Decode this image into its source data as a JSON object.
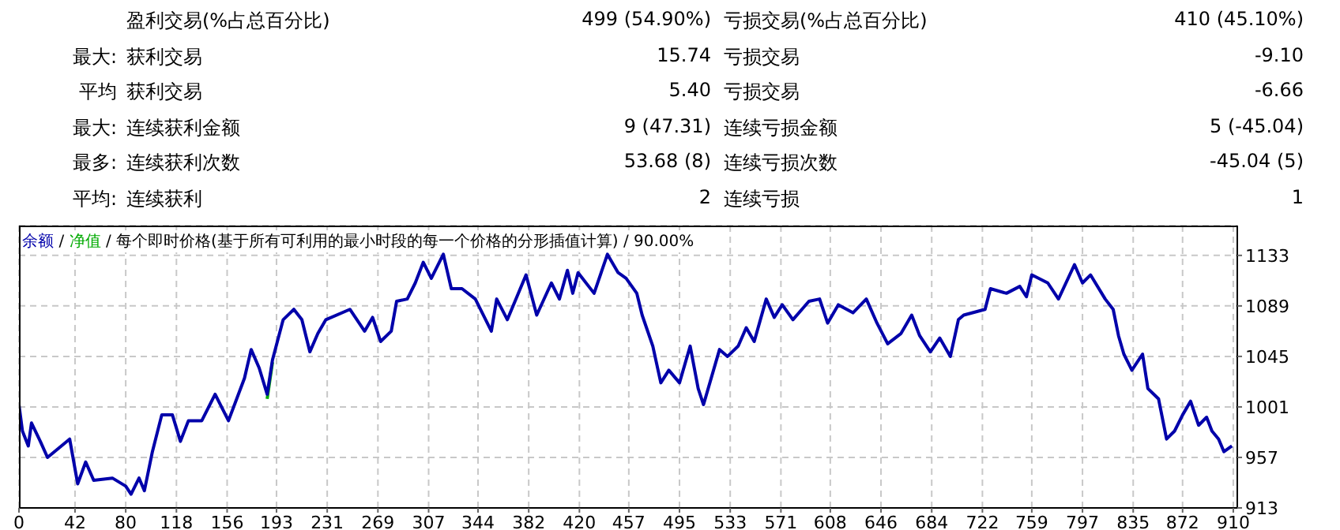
{
  "chart_data": {
    "type": "line",
    "annotations": [
      "盈利交易(%占总百分比)",
      "499 (54.90%)",
      "亏损交易(%占总百分比)",
      "410 (45.10%)",
      "最大:",
      "获利交易",
      "15.74",
      "亏损交易",
      "-9.10",
      "平均",
      "获利交易",
      "5.40",
      "亏损交易",
      "-6.66",
      "最大:",
      "连续获利金额",
      "9 (47.31)",
      "连续亏损金额",
      "5 (-45.04)",
      "最多:",
      "连续获利次数",
      "53.68 (8)",
      "连续亏损次数",
      "-45.04 (5)",
      "平均:",
      "连续获利",
      "2",
      "连续亏损",
      "1",
      "/",
      "/ 每个即时价格(基于所有可利用的最小时段的每一个价格的分形插值计算)",
      "/ 90.00%"
    ],
    "x": [
      0,
      2.6,
      7,
      9.4,
      16,
      21.4,
      38,
      44,
      50,
      56,
      70,
      80,
      84,
      90,
      94,
      100,
      107,
      115,
      121,
      127,
      137,
      147,
      157,
      169,
      174,
      180,
      186,
      190,
      198,
      206,
      212,
      218,
      224,
      230,
      248,
      259,
      265,
      271,
      279,
      283,
      291,
      297,
      303,
      309,
      318,
      324,
      332,
      342,
      354,
      358,
      366,
      380,
      388,
      399,
      405,
      411,
      415,
      419,
      431,
      441,
      449,
      455,
      463,
      467,
      475,
      481,
      487,
      495,
      503,
      509,
      513,
      525,
      531,
      539,
      545,
      551,
      560,
      566,
      572,
      580,
      592,
      600,
      606,
      614,
      625,
      635,
      643,
      651,
      661,
      669,
      675,
      683,
      690,
      698,
      704,
      708,
      724,
      728,
      740,
      750,
      755,
      759,
      771,
      779,
      791,
      797,
      803,
      814,
      820,
      824,
      828,
      834,
      842,
      846,
      854,
      860,
      866,
      872,
      878,
      884,
      890,
      894,
      899,
      903,
      909
    ],
    "series": [
      {
        "name": "余额",
        "color": "#0000aa",
        "values": [
          1003,
          980,
          967,
          987,
          971,
          957,
          973,
          934,
          953,
          937,
          939,
          932,
          925,
          939,
          928,
          962,
          994,
          994,
          971,
          989,
          989,
          1012,
          989,
          1026,
          1051,
          1035,
          1012,
          1042,
          1077,
          1086,
          1077,
          1049,
          1065,
          1077,
          1086,
          1067,
          1079,
          1058,
          1067,
          1093,
          1095,
          1109,
          1127,
          1113,
          1134,
          1104,
          1104,
          1095,
          1067,
          1095,
          1077,
          1116,
          1081,
          1109,
          1095,
          1120,
          1100,
          1118,
          1100,
          1134,
          1118,
          1113,
          1100,
          1081,
          1054,
          1022,
          1033,
          1022,
          1054,
          1017,
          1003,
          1051,
          1045,
          1054,
          1070,
          1058,
          1095,
          1079,
          1090,
          1077,
          1093,
          1095,
          1074,
          1090,
          1083,
          1095,
          1074,
          1056,
          1065,
          1081,
          1063,
          1049,
          1061,
          1045,
          1077,
          1081,
          1086,
          1104,
          1100,
          1106,
          1097,
          1116,
          1109,
          1095,
          1125,
          1109,
          1116,
          1095,
          1086,
          1063,
          1047,
          1033,
          1047,
          1017,
          1008,
          973,
          980,
          994,
          1006,
          985,
          992,
          980,
          973,
          962,
          967
        ]
      },
      {
        "name": "净值",
        "color": "#00aa00",
        "values": [
          null,
          null,
          null,
          null,
          null,
          null,
          null,
          null,
          null,
          null,
          null,
          null,
          null,
          null,
          null,
          null,
          null,
          null,
          null,
          null,
          null,
          null,
          null,
          null,
          null,
          null,
          1008,
          1040,
          null,
          null,
          null,
          null,
          null,
          null,
          null,
          null,
          null,
          null,
          null,
          null,
          null,
          null,
          null,
          null,
          null,
          null,
          null,
          null,
          null,
          null,
          null,
          null,
          null,
          null,
          null,
          null,
          null,
          null,
          null,
          null,
          null,
          null,
          null,
          null,
          null,
          null,
          null,
          null,
          null,
          null,
          null,
          null,
          null,
          null,
          null,
          null,
          null,
          null,
          null,
          null,
          null,
          null,
          null,
          null,
          null,
          null,
          null,
          null,
          null,
          null,
          null,
          null,
          null,
          null,
          null,
          null,
          null,
          null,
          null,
          null,
          null,
          null,
          null,
          null,
          null,
          null,
          null,
          null,
          null,
          null,
          null,
          null,
          null,
          null,
          null,
          null,
          null,
          null,
          null,
          null,
          null,
          null,
          null,
          null,
          null
        ]
      }
    ],
    "xlim": [
      0,
      913
    ],
    "xticks": [
      0,
      42,
      80,
      118,
      156,
      193,
      231,
      269,
      307,
      344,
      382,
      420,
      457,
      495,
      533,
      571,
      608,
      646,
      684,
      722,
      759,
      797,
      835,
      872,
      910
    ],
    "ylim": [
      913,
      1159
    ],
    "yticks": [
      913,
      957,
      1001,
      1045,
      1089,
      1133
    ],
    "grid": true,
    "legend": "top left",
    "line_style": "solid",
    "marker": "none"
  }
}
